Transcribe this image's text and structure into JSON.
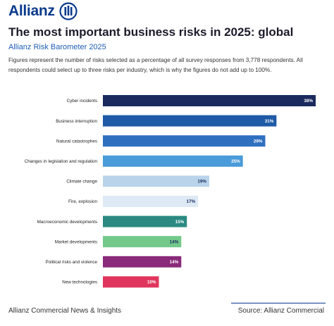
{
  "header": {
    "brand": "Allianz",
    "title": "The most important business risks in 2025: global",
    "subtitle": "Allianz Risk Barometer 2025",
    "description": "Figures represent the number of risks selected as a percentage of all survey responses from 3,778 respondents. All respondents could select up to three risks per industry, which is why the figures do not add up to 100%."
  },
  "footer": {
    "left": "Allianz Commercial News & Insights",
    "right": "Source: Allianz Commercial"
  },
  "colors": {
    "brand": "#0a3a8c",
    "accent": "#1d5eb5"
  },
  "chart_data": {
    "type": "bar",
    "orientation": "horizontal",
    "categories": [
      "Cyber incidents",
      "Business interruption",
      "Natural catastrophes",
      "Changes in legislation and regulation",
      "Climate change",
      "Fire, explosion",
      "Macroeconomic developments",
      "Market developments",
      "Political risks and violence",
      "New technologies"
    ],
    "values": [
      38,
      31,
      29,
      25,
      19,
      17,
      15,
      14,
      14,
      10
    ],
    "value_labels": [
      "38%",
      "31%",
      "29%",
      "25%",
      "19%",
      "17%",
      "15%",
      "14%",
      "14%",
      "10%"
    ],
    "bar_colors": [
      "#1a2a5e",
      "#1f5aa6",
      "#2e6fc0",
      "#4a9bd9",
      "#b9d4ea",
      "#dde9f4",
      "#2a8a82",
      "#72c98a",
      "#8a2a7a",
      "#e0365e"
    ],
    "value_label_colors": [
      "#ffffff",
      "#ffffff",
      "#ffffff",
      "#ffffff",
      "#1a2a5e",
      "#1a2a5e",
      "#ffffff",
      "#1a2a5e",
      "#ffffff",
      "#ffffff"
    ],
    "xlim": [
      0,
      38
    ],
    "grid": false,
    "legend": "none"
  }
}
